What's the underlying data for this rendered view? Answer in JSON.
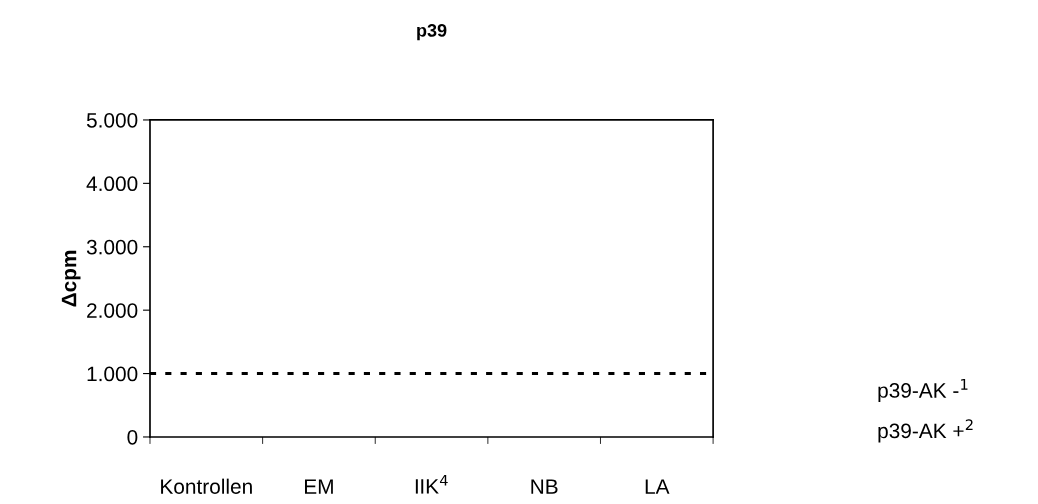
{
  "chart_data": {
    "type": "bar",
    "title": "p39",
    "ylabel": "Δcpm",
    "categories": [
      "Kontrollen",
      "EM",
      "IIK$^{4}$",
      "NB",
      "LA"
    ],
    "ylim": [
      0,
      5000
    ],
    "yticks": [
      0,
      {
        "value": 1000,
        "label": "1.000"
      },
      {
        "value": 2000,
        "label": "2.000"
      },
      {
        "value": 3000,
        "label": "3.000"
      },
      {
        "value": 4000,
        "label": "4.000"
      },
      {
        "value": 5000,
        "label": "5.000"
      }
    ],
    "ref_lines": [
      {
        "axis": "y",
        "value": 1000,
        "color": "#000000",
        "line_style": "dotted"
      }
    ],
    "annotations": [
      "p39-AK -$^{1}$",
      "p39-AK +$^{2}$"
    ]
  }
}
